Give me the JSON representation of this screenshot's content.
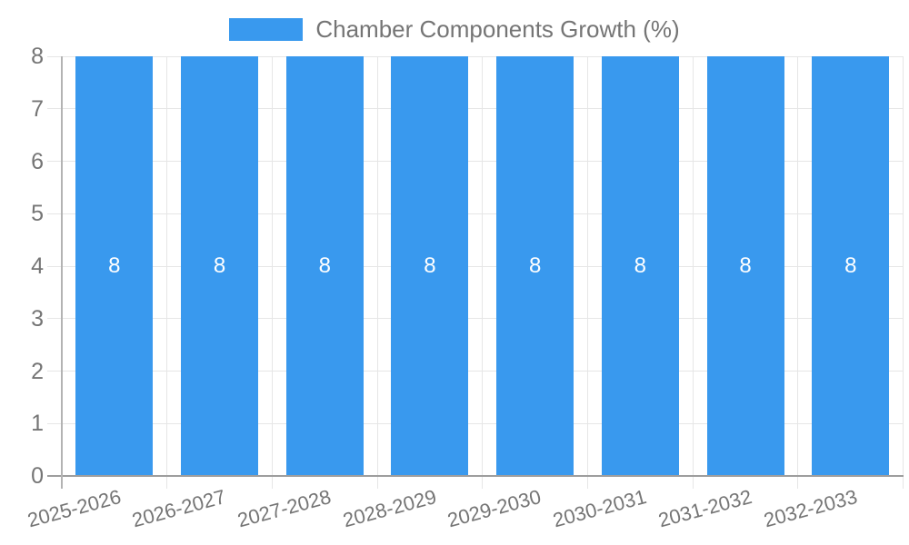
{
  "chart": {
    "legend": {
      "position": "top",
      "swatch_color": "#3999ee",
      "label": "Chamber Components Growth (%)"
    }
  },
  "chart_data": {
    "type": "bar",
    "title": "Chamber Components Growth (%)",
    "categories": [
      "2025-2026",
      "2026-2027",
      "2027-2028",
      "2028-2029",
      "2029-2030",
      "2030-2031",
      "2031-2032",
      "2032-2033"
    ],
    "series": [
      {
        "name": "Chamber Components Growth (%)",
        "values": [
          8,
          8,
          8,
          8,
          8,
          8,
          8,
          8
        ]
      }
    ],
    "value_labels": [
      "8",
      "8",
      "8",
      "8",
      "8",
      "8",
      "8",
      "8"
    ],
    "xlabel": "",
    "ylabel": "",
    "ylim": [
      0,
      8
    ],
    "yticks": [
      0,
      1,
      2,
      3,
      4,
      5,
      6,
      7,
      8
    ],
    "grid": true,
    "legend_position": "top",
    "bar_color": "#3999ee",
    "colors": {
      "axis_text": "#757575",
      "grid_line": "#e6e6e6",
      "x_axis_line": "#9e9e9e",
      "y_axis_line": "#b3b3b3",
      "value_label": "#ffffff",
      "background": "#ffffff"
    }
  }
}
